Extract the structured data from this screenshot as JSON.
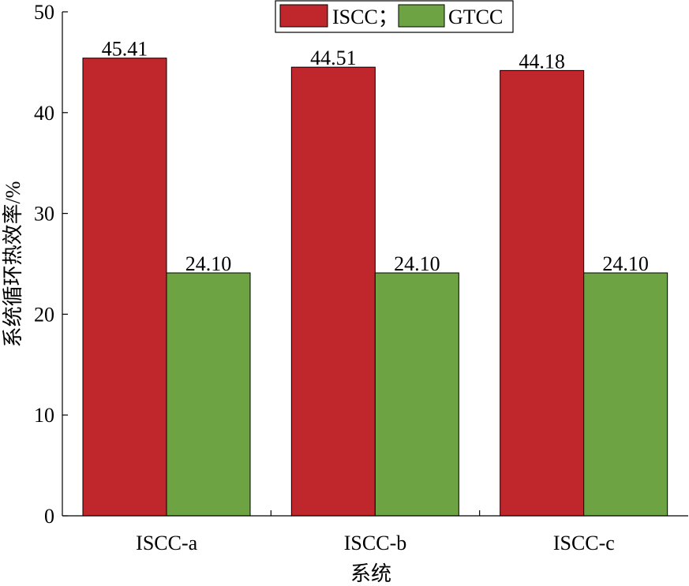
{
  "chart_data": {
    "type": "bar",
    "categories": [
      "ISCC-a",
      "ISCC-b",
      "ISCC-c"
    ],
    "series": [
      {
        "name": "ISCC；",
        "values": [
          45.41,
          44.51,
          44.18
        ],
        "labels": [
          "45.41",
          "44.51",
          "44.18"
        ],
        "color": "#c0272d"
      },
      {
        "name": "GTCC",
        "values": [
          24.1,
          24.1,
          24.1
        ],
        "labels": [
          "24.10",
          "24.10",
          "24.10"
        ],
        "color": "#6ea343"
      }
    ],
    "xlabel": "系统",
    "ylabel": "系统循环热效率/%",
    "ylim": [
      0,
      50
    ],
    "yticks": [
      0,
      10,
      20,
      30,
      40,
      50
    ],
    "grid": false,
    "legend_position": "top-center"
  }
}
